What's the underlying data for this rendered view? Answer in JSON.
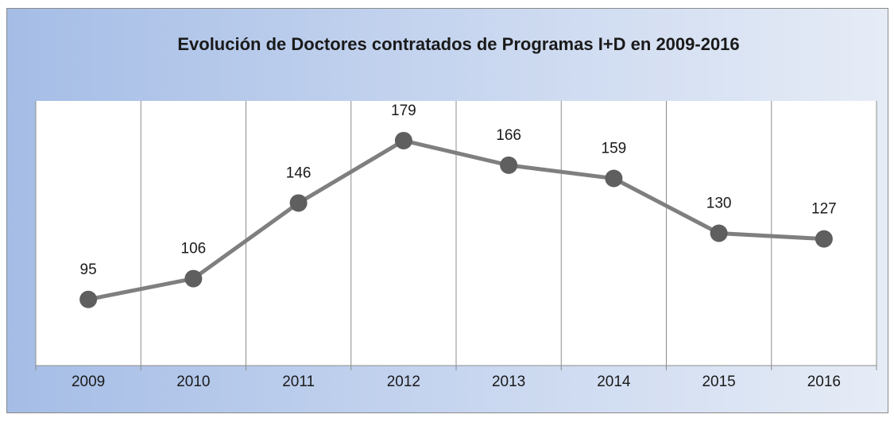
{
  "chart_data": {
    "type": "line",
    "title": "Evolución de Doctores contratados de Programas I+D en  2009-2016",
    "categories": [
      "2009",
      "2010",
      "2011",
      "2012",
      "2013",
      "2014",
      "2015",
      "2016"
    ],
    "values": [
      95,
      106,
      146,
      179,
      166,
      159,
      130,
      127
    ],
    "color": "#7f7f7f",
    "marker_color": "#5f5f5f",
    "ylim": [
      60,
      200
    ],
    "data_labels": true
  }
}
